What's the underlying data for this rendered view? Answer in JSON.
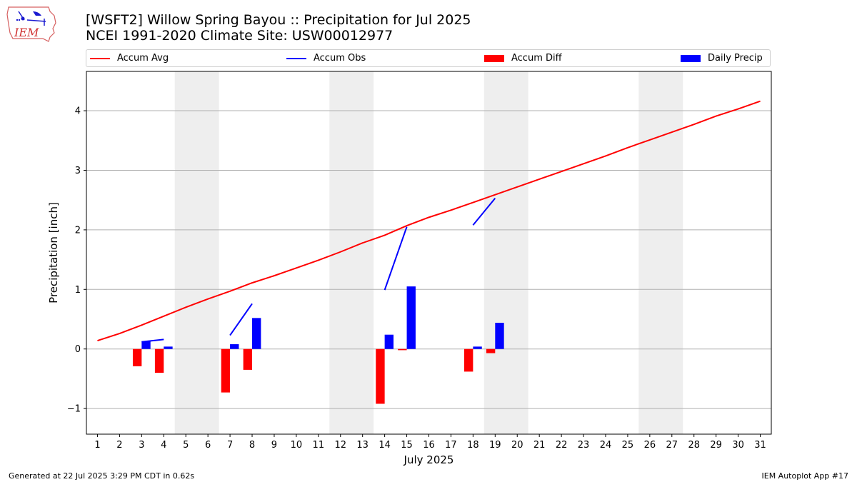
{
  "header": {
    "title_line1": "[WSFT2] Willow Spring Bayou :: Precipitation for Jul 2025",
    "title_line2": "NCEI 1991-2020 Climate Site: USW00012977"
  },
  "logo": {
    "text": "IEM",
    "icon": "iem-iowa-logo-icon"
  },
  "footer": {
    "left": "Generated at 22 Jul 2025 3:29 PM CDT in 0.62s",
    "right": "IEM Autoplot App #17"
  },
  "colors": {
    "avg": "#ff0000",
    "obs": "#0000ff",
    "diff": "#ff0000",
    "daily": "#0000ff",
    "weekend": "#eeeeee",
    "grid": "#b0b0b0"
  },
  "chart_data": {
    "type": "bar",
    "xlabel": "July 2025",
    "ylabel": "Precipitation [inch]",
    "xlim": [
      0.5,
      31.5
    ],
    "ylim": [
      -1.43,
      4.66
    ],
    "yticks": [
      -1,
      0,
      1,
      2,
      3,
      4
    ],
    "ytick_labels": [
      "−1",
      "0",
      "1",
      "2",
      "3",
      "4"
    ],
    "days": [
      1,
      2,
      3,
      4,
      5,
      6,
      7,
      8,
      9,
      10,
      11,
      12,
      13,
      14,
      15,
      16,
      17,
      18,
      19,
      20,
      21,
      22,
      23,
      24,
      25,
      26,
      27,
      28,
      29,
      30,
      31
    ],
    "weekend_spans": [
      [
        4.5,
        6.5
      ],
      [
        11.5,
        13.5
      ],
      [
        18.5,
        20.5
      ],
      [
        25.5,
        27.5
      ]
    ],
    "grid": "horizontal",
    "legend": [
      {
        "label": "Accum Avg",
        "kind": "line",
        "color": "#ff0000"
      },
      {
        "label": "Accum Obs",
        "kind": "line",
        "color": "#0000ff"
      },
      {
        "label": "Accum Diff",
        "kind": "bar",
        "color": "#ff0000"
      },
      {
        "label": "Daily Precip",
        "kind": "bar",
        "color": "#0000ff"
      }
    ],
    "legend_position": "top",
    "series": [
      {
        "name": "Accum Avg",
        "kind": "line",
        "x": [
          1,
          2,
          3,
          4,
          5,
          6,
          7,
          8,
          9,
          10,
          11,
          12,
          13,
          14,
          15,
          16,
          17,
          18,
          19,
          20,
          21,
          22,
          23,
          24,
          25,
          26,
          27,
          28,
          29,
          30,
          31
        ],
        "values": [
          0.14,
          0.26,
          0.4,
          0.55,
          0.7,
          0.84,
          0.97,
          1.11,
          1.23,
          1.36,
          1.49,
          1.63,
          1.78,
          1.91,
          2.07,
          2.21,
          2.33,
          2.46,
          2.59,
          2.72,
          2.85,
          2.98,
          3.11,
          3.24,
          3.38,
          3.51,
          3.64,
          3.77,
          3.91,
          4.03,
          4.16
        ]
      },
      {
        "name": "Accum Obs",
        "kind": "line",
        "segments": [
          {
            "x": [
              3,
              4
            ],
            "values": [
              0.12,
              0.16
            ]
          },
          {
            "x": [
              7,
              8
            ],
            "values": [
              0.23,
              0.76
            ]
          },
          {
            "x": [
              14,
              15
            ],
            "values": [
              0.99,
              2.05
            ]
          },
          {
            "x": [
              18,
              19
            ],
            "values": [
              2.08,
              2.53
            ]
          }
        ]
      },
      {
        "name": "Accum Diff",
        "kind": "bar",
        "x": [
          3,
          4,
          7,
          8,
          14,
          15,
          18,
          19
        ],
        "values": [
          -0.29,
          -0.4,
          -0.73,
          -0.35,
          -0.92,
          -0.02,
          -0.38,
          -0.07
        ]
      },
      {
        "name": "Daily Precip",
        "kind": "bar",
        "x": [
          3,
          4,
          7,
          8,
          14,
          15,
          18,
          19
        ],
        "values": [
          0.13,
          0.04,
          0.08,
          0.52,
          0.24,
          1.05,
          0.04,
          0.44
        ]
      }
    ]
  }
}
